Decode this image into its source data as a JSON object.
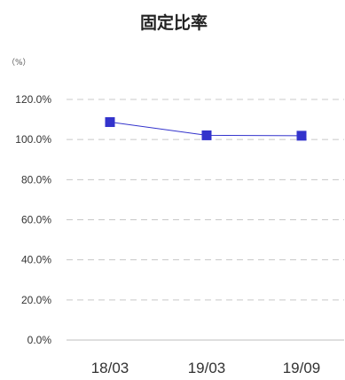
{
  "chart_data": {
    "type": "line",
    "title": "固定比率",
    "ylabel": "（%）",
    "categories": [
      "18/03",
      "19/03",
      "19/09"
    ],
    "series": [
      {
        "values": [
          108.7,
          102.1,
          101.9
        ]
      }
    ],
    "ylim": [
      0,
      120
    ],
    "yticks": [
      0,
      20,
      40,
      60,
      80,
      100,
      120
    ],
    "ytick_labels": [
      "0.0%",
      "20.0%",
      "40.0%",
      "60.0%",
      "80.0%",
      "100.0%",
      "120.0%"
    ],
    "grid": true,
    "color": "#3333cc",
    "marker": "square"
  }
}
